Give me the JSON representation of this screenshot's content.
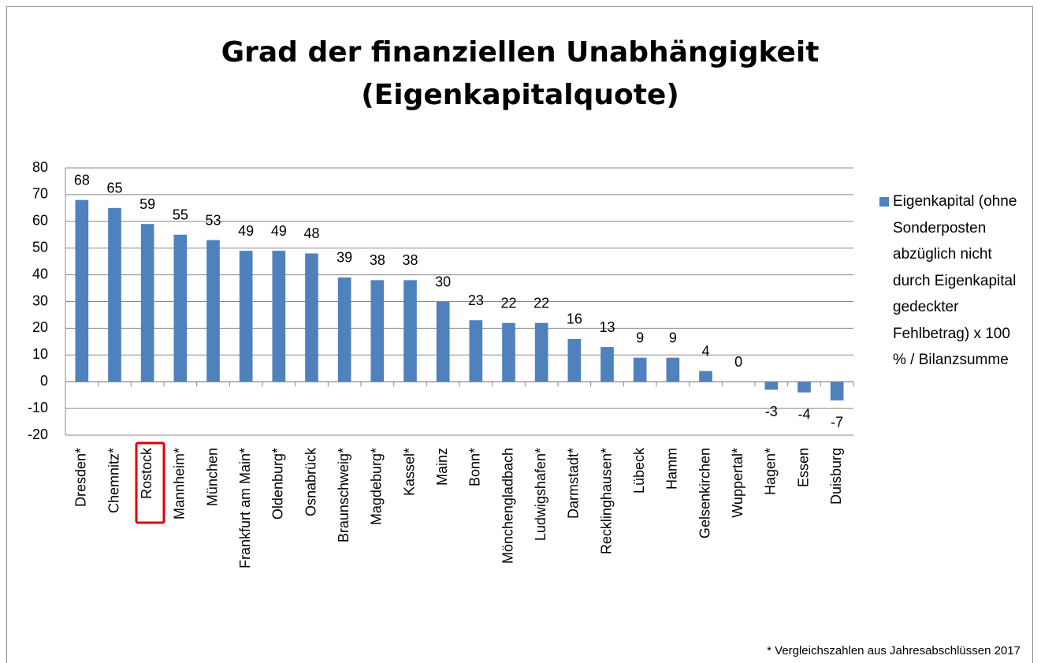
{
  "chart_data": {
    "type": "bar",
    "title": "Grad der finanziellen Unabhängigkeit (Eigenkapitalquote)",
    "categories": [
      "Dresden*",
      "Chemnitz*",
      "Rostock",
      "Mannheim*",
      "München",
      "Frankfurt am Main*",
      "Oldenburg*",
      "Osnabrück",
      "Braunschweig*",
      "Magdeburg*",
      "Kassel*",
      "Mainz",
      "Bonn*",
      "Mönchengladbach",
      "Ludwigshafen*",
      "Darmstadt*",
      "Recklinghausen*",
      "Lübeck",
      "Hamm",
      "Gelsenkirchen",
      "Wuppertal*",
      "Hagen*",
      "Essen",
      "Duisburg"
    ],
    "series": [
      {
        "name": "Eigenkapital (ohne Sonderposten abzüglich nicht durch Eigenkapital gedeckter Fehlbetrag) x 100 % / Bilanzsumme",
        "color": "#4f81bd",
        "values": [
          68,
          65,
          59,
          55,
          53,
          49,
          49,
          48,
          39,
          38,
          38,
          30,
          23,
          22,
          22,
          16,
          13,
          9,
          9,
          4,
          0,
          -3,
          -4,
          -7
        ]
      }
    ],
    "ylim": [
      -20,
      80
    ],
    "yticks": [
      -20,
      -10,
      0,
      10,
      20,
      30,
      40,
      50,
      60,
      70,
      80
    ],
    "grid": true,
    "legend": "right",
    "annotations": [
      "* Vergleichszahlen aus Jahresabschlüssen 2017"
    ]
  }
}
